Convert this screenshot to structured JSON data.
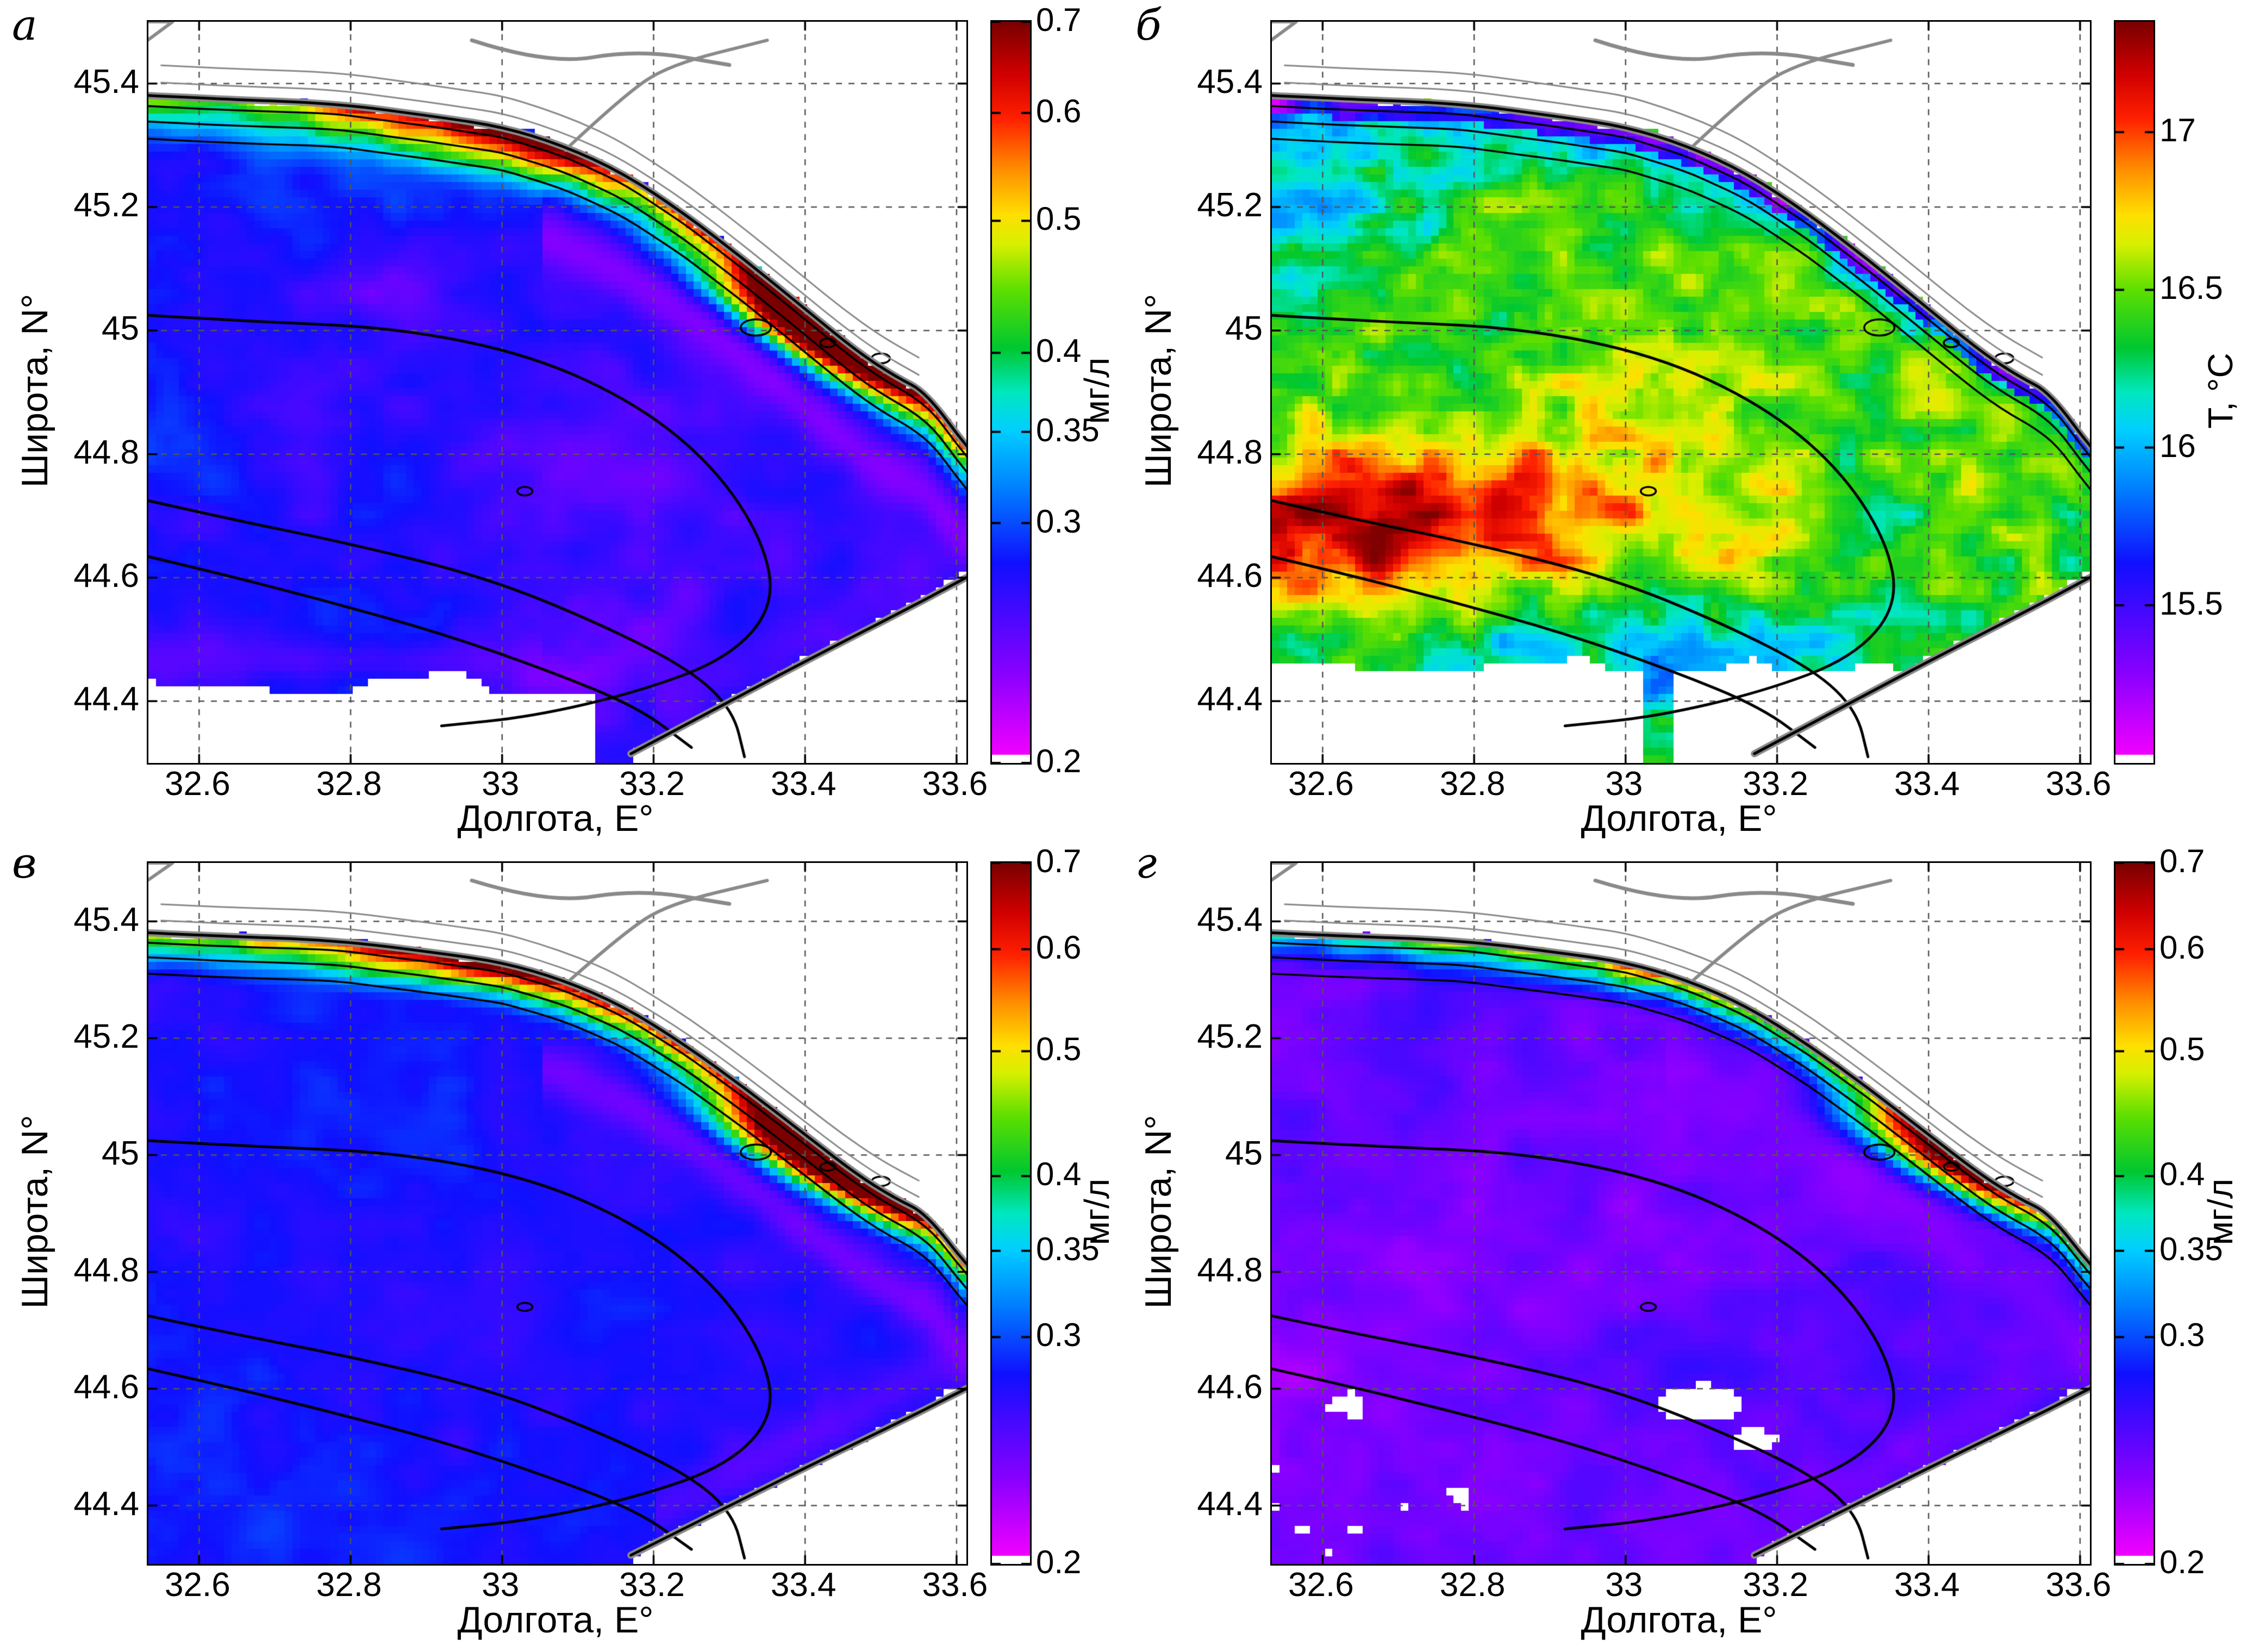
{
  "chart_data": {
    "type": "heatmap",
    "layout": "2x2",
    "shared_axes": {
      "xlabel": "Долгота, E°",
      "ylabel": "Широта, N°",
      "xtick_labels": [
        "32.6",
        "32.8",
        "33",
        "33.2",
        "33.4",
        "33.6"
      ],
      "xtick_values": [
        32.6,
        32.8,
        33.0,
        33.2,
        33.4,
        33.6
      ],
      "ytick_labels": [
        "45.4",
        "45.2",
        "45",
        "44.8",
        "44.6",
        "44.4"
      ],
      "ytick_values": [
        45.4,
        45.2,
        45.0,
        44.8,
        44.6,
        44.4
      ],
      "lon_range": [
        32.533,
        33.613
      ],
      "lat_range": [
        44.3,
        45.5
      ],
      "grid": "dashed"
    },
    "colormap": {
      "stops": [
        [
          0.0,
          "#ffffff"
        ],
        [
          0.012,
          "#f000ff"
        ],
        [
          0.12,
          "#8a00ff"
        ],
        [
          0.27,
          "#1010ff"
        ],
        [
          0.37,
          "#0080ff"
        ],
        [
          0.45,
          "#00d0ff"
        ],
        [
          0.5,
          "#00e8c0"
        ],
        [
          0.56,
          "#00c830"
        ],
        [
          0.64,
          "#60e000"
        ],
        [
          0.7,
          "#d8f000"
        ],
        [
          0.74,
          "#ffe000"
        ],
        [
          0.8,
          "#ff9000"
        ],
        [
          0.87,
          "#ff2000"
        ],
        [
          0.93,
          "#d00000"
        ],
        [
          1.0,
          "#7a0000"
        ]
      ]
    },
    "panels": [
      {
        "id": "a",
        "label": "а",
        "row": 1,
        "col": 1,
        "variable": "suspended_matter_concentration",
        "unit": "мг/л",
        "colorbar": {
          "scale": "log",
          "ticks": [
            "0.7",
            "0.6",
            "0.5",
            "0.4",
            "0.35",
            "0.3",
            "0.2"
          ],
          "values": [
            0.7,
            0.6,
            0.5,
            0.4,
            0.35,
            0.3,
            0.2
          ],
          "bar_min": 0.2,
          "bar_max": 0.7
        },
        "description": "High suspended matter 0.5–0.7 мг/л in a band along the NE coast with a dark-red maximum near 33.3–33.55E, 44.95–45.15N; open sea 0.23–0.30 мг/л (blue/violet with magenta patches); no data south of ~44.43N west of 33E.",
        "field": {
          "seed": 1.7,
          "sea_base": 0.262,
          "noise_low": 0.04,
          "noise_high": 0.016,
          "band_width": 0.125,
          "band_amp": 0.5,
          "blob_amp": 0.55,
          "west_damp": 0.55,
          "fringe_amp": 0.75,
          "bottom_cut": 44.425,
          "bottom_fringe": true,
          "holes": false
        }
      },
      {
        "id": "b",
        "label": "б",
        "row": 1,
        "col": 2,
        "variable": "sea_surface_temperature",
        "unit": "T, °C",
        "colorbar": {
          "scale": "linear",
          "ticks": [
            "17",
            "16.5",
            "16",
            "15.5"
          ],
          "values": [
            17.0,
            16.5,
            16.0,
            15.5
          ],
          "bar_min": 15.0,
          "bar_max": 17.35
        },
        "description": "Warm band 16.8–17.3 °C along ~44.6–44.75N west of 33.25E; cooler 15.5–16.2 °C (cyan/blue, magenta specks) along the coast and NW corner; mostly 16.2–16.7 °C (green/yellow) elsewhere; warm patch in SE corner; no data south of ~44.46N.",
        "field": {
          "seed": 2.9,
          "sea_base": 16.42,
          "noise_low": 0.4,
          "noise_high": 0.3,
          "warm_band_amp": 0.68,
          "warm_band_lat": 44.66,
          "coast_cold_amp": 0.62,
          "coast_cold_width": 0.11,
          "northwest_cold_amp": 0.35,
          "corner_warm_amp": 1.05,
          "bottom_cut": 44.455
        }
      },
      {
        "id": "v",
        "label": "в",
        "row": 2,
        "col": 1,
        "variable": "suspended_matter_concentration",
        "unit": "мг/л",
        "colorbar": {
          "scale": "log",
          "ticks": [
            "0.7",
            "0.6",
            "0.5",
            "0.4",
            "0.35",
            "0.3",
            "0.2"
          ],
          "values": [
            0.7,
            0.6,
            0.5,
            0.4,
            0.35,
            0.3,
            0.2
          ],
          "bar_min": 0.2,
          "bar_max": 0.7
        },
        "description": "Same scene as (a): narrower coastal maximum with dark-red core near the cape; open sea more uniform 0.27–0.30 мг/л (blue); magenta fringe seaward of the coastal band and along the SE shore.",
        "field": {
          "seed": 3.7,
          "sea_base": 0.274,
          "noise_low": 0.022,
          "noise_high": 0.012,
          "band_width": 0.1,
          "band_amp": 0.5,
          "blob_amp": 0.58,
          "west_damp": 0.7,
          "fringe_amp": 0.65,
          "bottom_cut": null,
          "bottom_fringe": false,
          "holes": false
        }
      },
      {
        "id": "g",
        "label": "г",
        "row": 2,
        "col": 2,
        "variable": "suspended_matter_concentration",
        "unit": "мг/л",
        "colorbar": {
          "scale": "log",
          "ticks": [
            "0.7",
            "0.6",
            "0.5",
            "0.4",
            "0.35",
            "0.3",
            "0.2"
          ],
          "values": [
            0.7,
            0.6,
            0.5,
            0.4,
            0.35,
            0.3,
            0.2
          ],
          "bar_min": 0.2,
          "bar_max": 0.7
        },
        "description": "Lower coastal values (mostly 0.35–0.55 мг/л, green–yellow, local red spots); open sea 0.22–0.27 мг/л (violet–magenta); small white no-data gaps near 33.1E 44.58N and in the SW.",
        "field": {
          "seed": 4.9,
          "sea_base": 0.246,
          "noise_low": 0.027,
          "noise_high": 0.014,
          "band_width": 0.095,
          "band_amp": 0.32,
          "blob_amp": 0.36,
          "west_damp": 0.65,
          "fringe_amp": 0.45,
          "bottom_cut": null,
          "bottom_fringe": false,
          "holes": true
        }
      }
    ]
  }
}
